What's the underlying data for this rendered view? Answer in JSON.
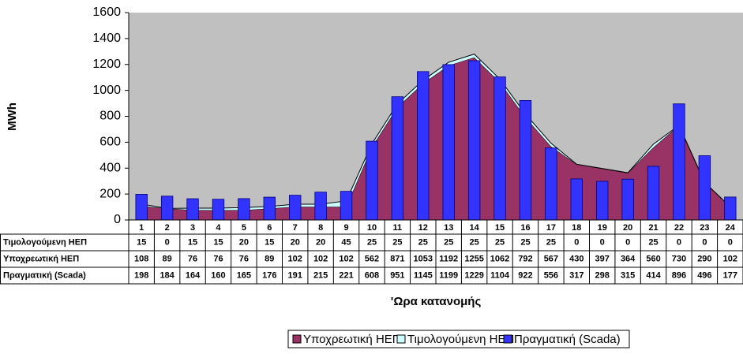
{
  "chart_data": {
    "type": "combo",
    "y_label": "MWh",
    "x_label": "'Ωρα κατανομής",
    "categories": [
      "1",
      "2",
      "3",
      "4",
      "5",
      "6",
      "7",
      "8",
      "9",
      "10",
      "11",
      "12",
      "13",
      "14",
      "15",
      "16",
      "17",
      "18",
      "19",
      "20",
      "21",
      "22",
      "23",
      "24"
    ],
    "series": [
      {
        "name": "Υποχρεωτική ΗΕΠ",
        "type": "area",
        "color": "#993366",
        "values": [
          108,
          89,
          76,
          76,
          76,
          89,
          102,
          102,
          102,
          562,
          871,
          1053,
          1192,
          1255,
          1062,
          792,
          567,
          430,
          397,
          364,
          560,
          730,
          290,
          102
        ]
      },
      {
        "name": "Τιμολογούμενη ΗΕΠ",
        "type": "area",
        "color": "#ccffff",
        "values": [
          15,
          0,
          15,
          15,
          20,
          15,
          20,
          20,
          45,
          25,
          25,
          25,
          25,
          25,
          25,
          25,
          25,
          0,
          0,
          0,
          25,
          0,
          0,
          0
        ]
      },
      {
        "name": "Πραγματική (Scada)",
        "type": "bar",
        "color": "#3333ff",
        "values": [
          198,
          184,
          164,
          160,
          165,
          176,
          191,
          215,
          221,
          608,
          951,
          1145,
          1199,
          1229,
          1104,
          922,
          556,
          317,
          298,
          315,
          414,
          896,
          496,
          177
        ]
      }
    ],
    "ylim": [
      0,
      1600
    ],
    "yticks": [
      0,
      200,
      400,
      600,
      800,
      1000,
      1200,
      1400,
      1600
    ],
    "grid": false
  }
}
